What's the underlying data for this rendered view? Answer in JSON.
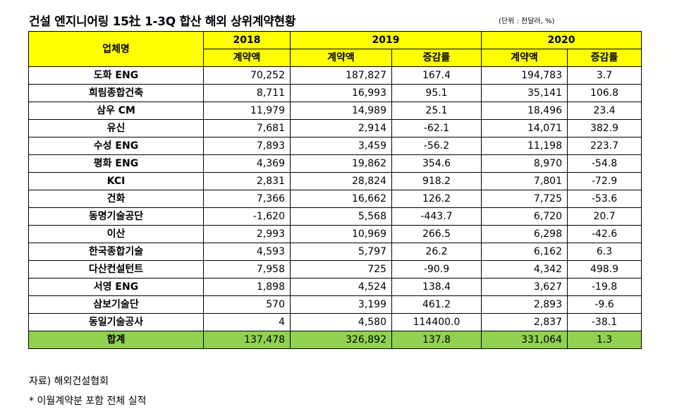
{
  "title": "건설 엔지니어링 15社 1-3Q 합산 해외 상위계약현황",
  "unit": "(단위 : 천달러, %)",
  "header": {
    "company_col": "업체명",
    "years": [
      "2018",
      "2019",
      "2020"
    ],
    "sub": {
      "y2018": [
        "계약액"
      ],
      "y2019": [
        "계약액",
        "증감률"
      ],
      "y2020": [
        "계약액",
        "증감률"
      ]
    }
  },
  "rows": [
    {
      "name": "도화 ENG",
      "c2018": "70,252",
      "c2019": "187,827",
      "r2019": "167.4",
      "c2020": "194,783",
      "r2020": "3.7"
    },
    {
      "name": "희림종합건축",
      "c2018": "8,711",
      "c2019": "16,993",
      "r2019": "95.1",
      "c2020": "35,141",
      "r2020": "106.8"
    },
    {
      "name": "삼우 CM",
      "c2018": "11,979",
      "c2019": "14,989",
      "r2019": "25.1",
      "c2020": "18,496",
      "r2020": "23.4"
    },
    {
      "name": "유신",
      "c2018": "7,681",
      "c2019": "2,914",
      "r2019": "-62.1",
      "c2020": "14,071",
      "r2020": "382.9"
    },
    {
      "name": "수성 ENG",
      "c2018": "7,893",
      "c2019": "3,459",
      "r2019": "-56.2",
      "c2020": "11,198",
      "r2020": "223.7"
    },
    {
      "name": "평화 ENG",
      "c2018": "4,369",
      "c2019": "19,862",
      "r2019": "354.6",
      "c2020": "8,970",
      "r2020": "-54.8"
    },
    {
      "name": "KCI",
      "c2018": "2,831",
      "c2019": "28,824",
      "r2019": "918.2",
      "c2020": "7,801",
      "r2020": "-72.9"
    },
    {
      "name": "건화",
      "c2018": "7,366",
      "c2019": "16,662",
      "r2019": "126.2",
      "c2020": "7,725",
      "r2020": "-53.6"
    },
    {
      "name": "동명기술공단",
      "c2018": "-1,620",
      "c2019": "5,568",
      "r2019": "-443.7",
      "c2020": "6,720",
      "r2020": "20.7"
    },
    {
      "name": "이산",
      "c2018": "2,993",
      "c2019": "10,969",
      "r2019": "266.5",
      "c2020": "6,298",
      "r2020": "-42.6"
    },
    {
      "name": "한국종합기술",
      "c2018": "4,593",
      "c2019": "5,797",
      "r2019": "26.2",
      "c2020": "6,162",
      "r2020": "6.3"
    },
    {
      "name": "다산컨설턴트",
      "c2018": "7,958",
      "c2019": "725",
      "r2019": "-90.9",
      "c2020": "4,342",
      "r2020": "498.9"
    },
    {
      "name": "서영 ENG",
      "c2018": "1,898",
      "c2019": "4,524",
      "r2019": "138.4",
      "c2020": "3,627",
      "r2020": "-19.8"
    },
    {
      "name": "삼보기술단",
      "c2018": "570",
      "c2019": "3,199",
      "r2019": "461.2",
      "c2020": "2,893",
      "r2020": "-9.6"
    },
    {
      "name": "동일기술공사",
      "c2018": "4",
      "c2019": "4,580",
      "r2019": "114400.0",
      "c2020": "2,837",
      "r2020": "-38.1"
    }
  ],
  "total": {
    "name": "합계",
    "c2018": "137,478",
    "c2019": "326,892",
    "r2019": "137.8",
    "c2020": "331,064",
    "r2020": "1.3"
  },
  "source": "자료) 해외건설협회",
  "note": "* 이월계약분 포함 전체 실적",
  "colors": {
    "header_bg": "#ffff00",
    "total_bg": "#92d050"
  }
}
